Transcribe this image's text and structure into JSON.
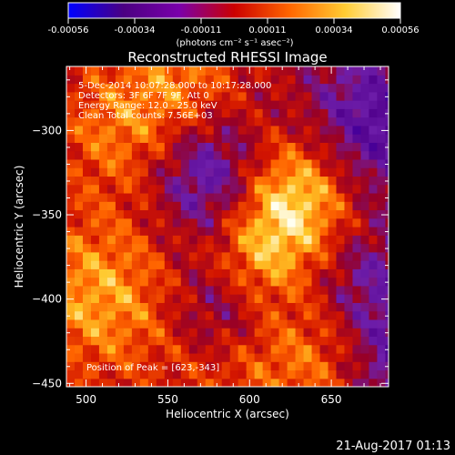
{
  "chart_data": {
    "type": "heatmap",
    "title": "Reconstructed RHESSI Image",
    "xlabel": "Heliocentric X (arcsec)",
    "ylabel": "Heliocentric Y (arcsec)",
    "xlim": [
      488,
      685
    ],
    "ylim": [
      -452,
      -262
    ],
    "x_ticks": [
      500,
      550,
      600,
      650
    ],
    "y_ticks": [
      -450,
      -400,
      -350,
      -300
    ],
    "annotations": [
      "5-Dec-2014 10:07:28.000 to 10:17:28.000",
      "Detectors: 3F 6F 7F 9F, Att 0",
      "Energy Range: 12.0 - 25.0 keV",
      "Clean    Total counts: 7.56E+03"
    ],
    "peak_label": "Position of Peak = [623,-343]",
    "peak": [
      623,
      -343
    ],
    "colorbar": {
      "range": [
        -0.00056,
        0.00056
      ],
      "ticks": [
        "-0.00056",
        "-0.00034",
        "-0.00011",
        "0.00011",
        "0.00034",
        "0.00056"
      ],
      "units": "(photons cm⁻² s⁻¹ asec⁻²)",
      "colors": [
        "#0000ff",
        "#4b0082",
        "#7a00aa",
        "#cc0000",
        "#ff6600",
        "#ffcc33",
        "#ffffff"
      ]
    },
    "grid": false,
    "legend": "none"
  },
  "footer": {
    "timestamp": "21-Aug-2017 01:13"
  }
}
